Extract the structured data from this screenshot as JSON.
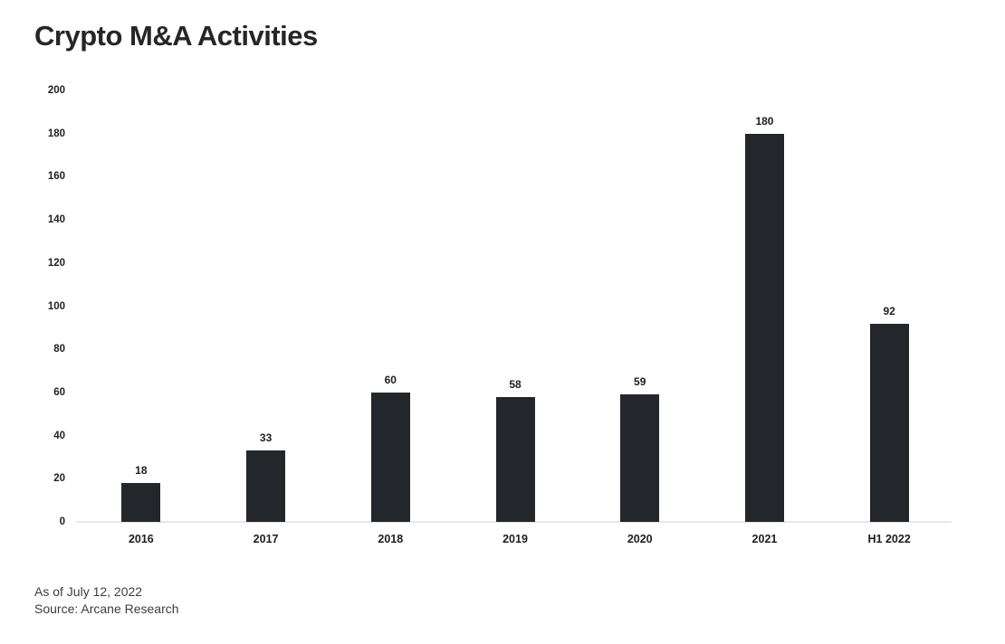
{
  "title": "Crypto M&A Activities",
  "footer": {
    "as_of": "As of July 12, 2022",
    "source": "Source: Arcane Research"
  },
  "colors": {
    "bar": "#23262b",
    "title_text": "#262626",
    "axis_text": "#1f1f1f",
    "baseline": "#e7e7e7",
    "footer_text": "#3d3d3d",
    "background": "#ffffff"
  },
  "chart_data": {
    "type": "bar",
    "title": "Crypto M&A Activities",
    "categories": [
      "2016",
      "2017",
      "2018",
      "2019",
      "2020",
      "2021",
      "H1 2022"
    ],
    "values": [
      18,
      33,
      60,
      58,
      59,
      180,
      92
    ],
    "xlabel": "",
    "ylabel": "",
    "ylim": [
      0,
      200
    ],
    "ytick_step": 20,
    "ytick_labels": [
      "0",
      "20",
      "40",
      "60",
      "80",
      "100",
      "120",
      "140",
      "160",
      "180",
      "200"
    ],
    "grid": false,
    "legend": "none",
    "data_labels": true
  }
}
